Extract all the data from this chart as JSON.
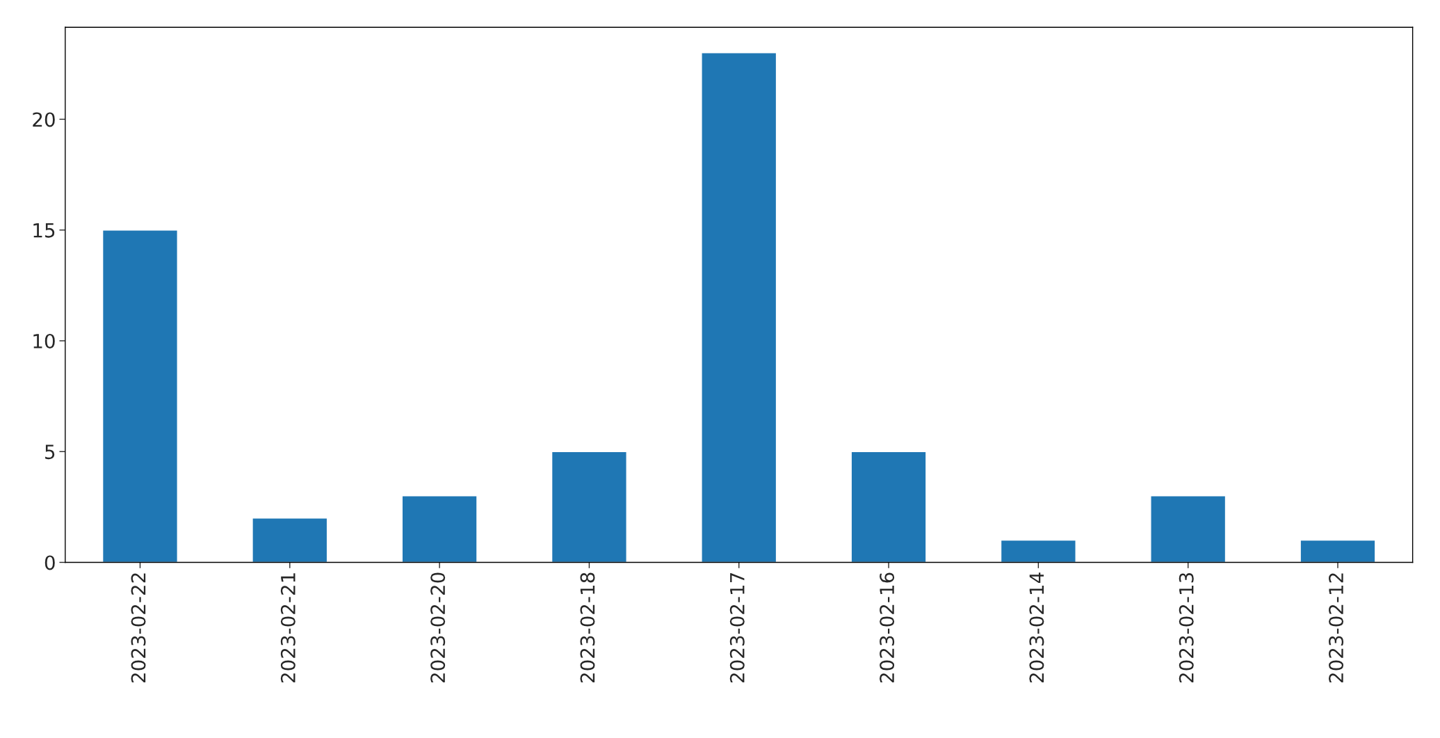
{
  "chart_data": {
    "type": "bar",
    "categories": [
      "2023-02-22",
      "2023-02-21",
      "2023-02-20",
      "2023-02-18",
      "2023-02-17",
      "2023-02-16",
      "2023-02-14",
      "2023-02-13",
      "2023-02-12"
    ],
    "values": [
      15,
      2,
      3,
      5,
      23,
      5,
      1,
      3,
      1
    ],
    "color": "#1f77b4",
    "ylim": [
      0,
      24.15
    ],
    "yticks": [
      0,
      5,
      10,
      15,
      20
    ],
    "grid": false,
    "legend": false
  }
}
